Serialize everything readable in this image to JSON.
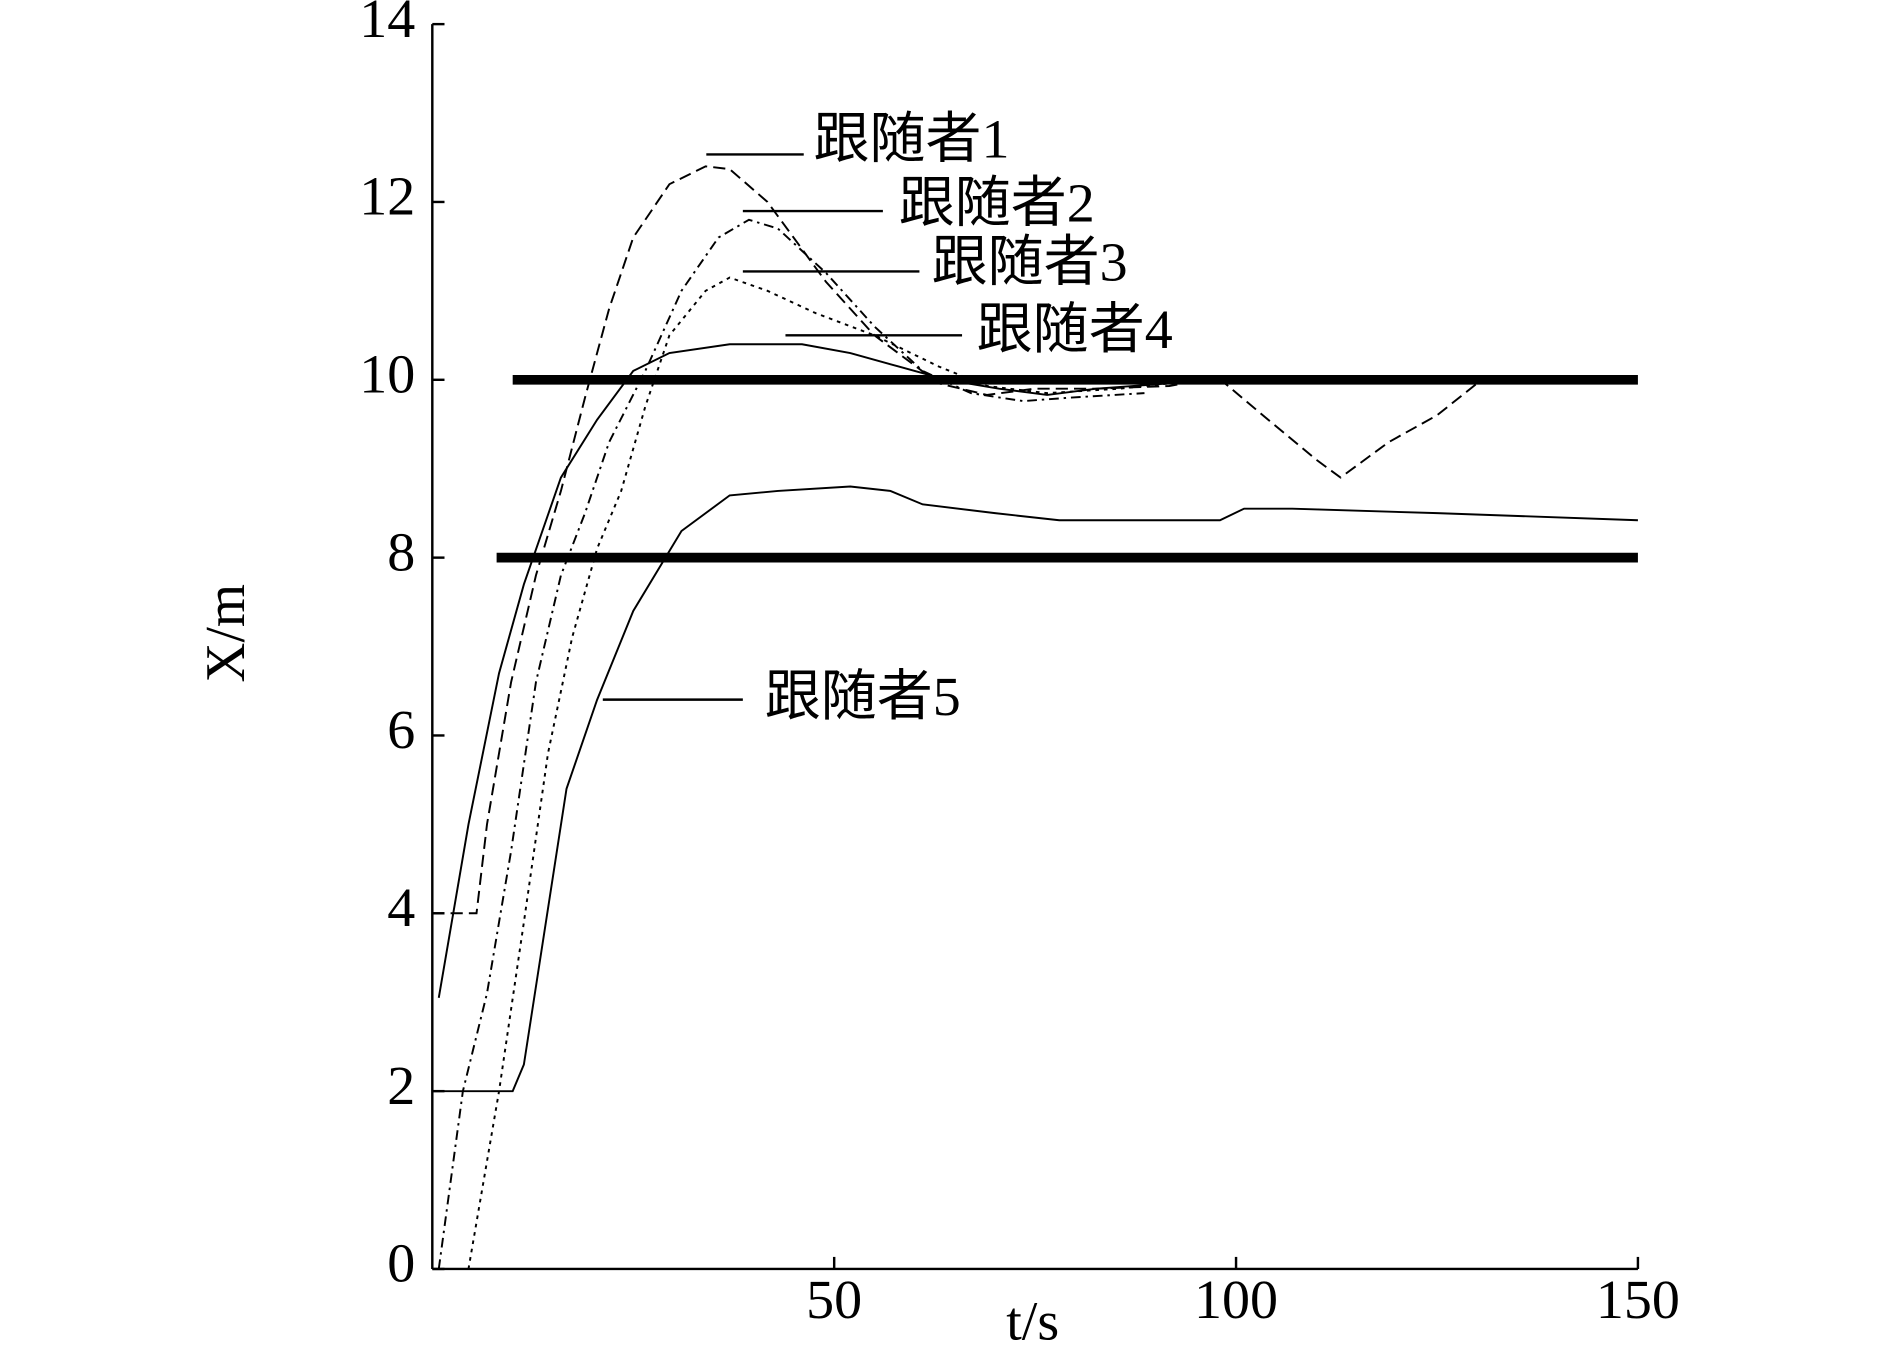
{
  "chart_data": {
    "type": "line",
    "xlabel": "t/s",
    "ylabel": "X/m",
    "xlim": [
      0,
      150
    ],
    "ylim": [
      0,
      14
    ],
    "xticks": [
      50,
      100,
      150
    ],
    "yticks": [
      0,
      2,
      4,
      6,
      8,
      10,
      12,
      14
    ],
    "hlines": [
      {
        "y": 10,
        "x": [
          10,
          150
        ]
      },
      {
        "y": 8,
        "x": [
          8,
          150
        ]
      }
    ],
    "series": [
      {
        "name": "跟随者1",
        "color": "#000000",
        "dash": "10 5",
        "x": [
          0,
          5.5,
          6.8,
          9.8,
          12.9,
          16,
          19,
          22,
          25,
          29.5,
          34,
          37,
          41.7,
          49,
          55,
          63,
          69,
          75,
          82.6,
          91.7,
          97.7,
          104,
          110,
          113,
          119,
          125,
          130
        ],
        "values": [
          4,
          4,
          5.0,
          6.6,
          7.8,
          8.75,
          9.8,
          10.8,
          11.6,
          12.2,
          12.4,
          12.37,
          12.0,
          11.1,
          10.5,
          9.96,
          9.83,
          9.9,
          9.9,
          9.93,
          10.03,
          9.55,
          9.1,
          8.9,
          9.3,
          9.6,
          9.96
        ]
      },
      {
        "name": "跟随者2",
        "color": "#000000",
        "dash": "8 4 2 4",
        "x": [
          0.8,
          3.8,
          6.8,
          9.8,
          12.9,
          16,
          19,
          22,
          26.5,
          31,
          35.6,
          39.4,
          43,
          49,
          55,
          61,
          67,
          73.5,
          79.5,
          88.6
        ],
        "values": [
          0,
          2.0,
          3.1,
          4.7,
          6.6,
          7.8,
          8.5,
          9.3,
          10.1,
          11.0,
          11.6,
          11.8,
          11.7,
          11.2,
          10.6,
          10.1,
          9.85,
          9.76,
          9.8,
          9.85
        ]
      },
      {
        "name": "跟随者3",
        "color": "#000000",
        "dash": "3 4",
        "x": [
          4.5,
          8.3,
          11.4,
          14.4,
          17.4,
          20.5,
          23.5,
          26.5,
          29.5,
          34,
          37,
          41.7,
          47.7,
          55,
          63,
          69,
          76.5,
          85.6,
          91.7
        ],
        "values": [
          0,
          2.0,
          3.9,
          5.8,
          7.1,
          8.1,
          8.75,
          9.7,
          10.5,
          11.0,
          11.15,
          11.0,
          10.75,
          10.5,
          10.15,
          9.93,
          9.85,
          9.9,
          9.96
        ]
      },
      {
        "name": "跟随者4",
        "color": "#000000",
        "dash": "none",
        "x": [
          0.8,
          4.5,
          8.3,
          11.4,
          16,
          20.5,
          25,
          29.5,
          37,
          46,
          52,
          58,
          64,
          70.5,
          76.5,
          82.6,
          91.7
        ],
        "values": [
          3.05,
          5.0,
          6.7,
          7.7,
          8.9,
          9.55,
          10.1,
          10.3,
          10.4,
          10.4,
          10.3,
          10.15,
          10.0,
          9.9,
          9.83,
          9.9,
          9.96
        ]
      },
      {
        "name": "跟随者5",
        "color": "#000000",
        "dash": "none",
        "x": [
          0,
          10,
          11.4,
          16.7,
          20.5,
          25,
          31,
          37,
          43,
          52,
          57,
          61,
          70,
          78,
          98,
          101,
          107,
          125,
          150
        ],
        "values": [
          2,
          2,
          2.3,
          5.4,
          6.4,
          7.4,
          8.3,
          8.7,
          8.75,
          8.8,
          8.75,
          8.6,
          8.5,
          8.42,
          8.42,
          8.55,
          8.55,
          8.5,
          8.42
        ]
      }
    ]
  }
}
